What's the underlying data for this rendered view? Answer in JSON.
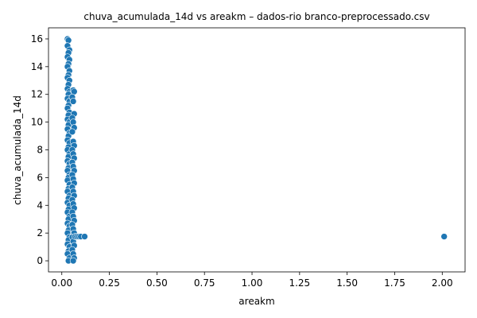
{
  "chart_data": {
    "type": "scatter",
    "title": "chuva_acumulada_14d vs areakm – dados-rio branco-preprocessado.csv",
    "xlabel": "areakm",
    "ylabel": "chuva_acumulada_14d",
    "xlim": [
      -0.07,
      2.12
    ],
    "ylim": [
      -0.8,
      16.8
    ],
    "xticks": [
      0.0,
      0.25,
      0.5,
      0.75,
      1.0,
      1.25,
      1.5,
      1.75,
      2.0
    ],
    "xtick_labels": [
      "0.00",
      "0.25",
      "0.50",
      "0.75",
      "1.00",
      "1.25",
      "1.50",
      "1.75",
      "2.00"
    ],
    "yticks": [
      0,
      2,
      4,
      6,
      8,
      10,
      12,
      14,
      16
    ],
    "ytick_labels": [
      "0",
      "2",
      "4",
      "6",
      "8",
      "10",
      "12",
      "14",
      "16"
    ],
    "grid": false,
    "series": [
      {
        "color": "#1f77b4",
        "points": [
          [
            0.03,
            16.0
          ],
          [
            0.035,
            15.9
          ],
          [
            0.03,
            15.5
          ],
          [
            0.04,
            15.2
          ],
          [
            0.035,
            15.0
          ],
          [
            0.03,
            14.7
          ],
          [
            0.04,
            14.5
          ],
          [
            0.035,
            14.2
          ],
          [
            0.03,
            14.0
          ],
          [
            0.04,
            13.7
          ],
          [
            0.035,
            13.4
          ],
          [
            0.03,
            13.2
          ],
          [
            0.04,
            13.0
          ],
          [
            0.035,
            12.7
          ],
          [
            0.03,
            12.4
          ],
          [
            0.04,
            12.2
          ],
          [
            0.035,
            12.0
          ],
          [
            0.03,
            11.7
          ],
          [
            0.04,
            11.5
          ],
          [
            0.035,
            11.2
          ],
          [
            0.03,
            11.0
          ],
          [
            0.04,
            10.7
          ],
          [
            0.035,
            10.5
          ],
          [
            0.03,
            10.2
          ],
          [
            0.04,
            10.0
          ],
          [
            0.035,
            9.8
          ],
          [
            0.03,
            9.5
          ],
          [
            0.04,
            9.2
          ],
          [
            0.035,
            9.0
          ],
          [
            0.03,
            8.7
          ],
          [
            0.04,
            8.5
          ],
          [
            0.035,
            8.2
          ],
          [
            0.03,
            8.0
          ],
          [
            0.04,
            7.7
          ],
          [
            0.035,
            7.5
          ],
          [
            0.03,
            7.2
          ],
          [
            0.04,
            7.0
          ],
          [
            0.035,
            6.7
          ],
          [
            0.03,
            6.5
          ],
          [
            0.04,
            6.2
          ],
          [
            0.035,
            6.0
          ],
          [
            0.03,
            5.8
          ],
          [
            0.04,
            5.5
          ],
          [
            0.035,
            5.2
          ],
          [
            0.03,
            5.0
          ],
          [
            0.04,
            4.7
          ],
          [
            0.035,
            4.5
          ],
          [
            0.03,
            4.2
          ],
          [
            0.04,
            4.0
          ],
          [
            0.035,
            3.7
          ],
          [
            0.03,
            3.5
          ],
          [
            0.04,
            3.2
          ],
          [
            0.035,
            3.0
          ],
          [
            0.03,
            2.7
          ],
          [
            0.04,
            2.5
          ],
          [
            0.035,
            2.2
          ],
          [
            0.03,
            2.0
          ],
          [
            0.04,
            1.7
          ],
          [
            0.035,
            1.5
          ],
          [
            0.03,
            1.2
          ],
          [
            0.04,
            1.0
          ],
          [
            0.035,
            0.7
          ],
          [
            0.03,
            0.5
          ],
          [
            0.04,
            0.2
          ],
          [
            0.035,
            0.0
          ],
          [
            0.06,
            12.3
          ],
          [
            0.065,
            12.2
          ],
          [
            0.055,
            11.8
          ],
          [
            0.06,
            11.5
          ],
          [
            0.065,
            10.6
          ],
          [
            0.055,
            10.3
          ],
          [
            0.06,
            10.0
          ],
          [
            0.065,
            9.6
          ],
          [
            0.055,
            9.3
          ],
          [
            0.06,
            8.6
          ],
          [
            0.065,
            8.3
          ],
          [
            0.055,
            8.0
          ],
          [
            0.06,
            7.7
          ],
          [
            0.065,
            7.4
          ],
          [
            0.055,
            7.1
          ],
          [
            0.06,
            6.8
          ],
          [
            0.065,
            6.5
          ],
          [
            0.055,
            6.2
          ],
          [
            0.06,
            5.9
          ],
          [
            0.065,
            5.6
          ],
          [
            0.055,
            5.3
          ],
          [
            0.06,
            5.0
          ],
          [
            0.065,
            4.7
          ],
          [
            0.055,
            4.4
          ],
          [
            0.06,
            4.1
          ],
          [
            0.065,
            3.8
          ],
          [
            0.055,
            3.5
          ],
          [
            0.06,
            3.2
          ],
          [
            0.065,
            2.9
          ],
          [
            0.055,
            2.6
          ],
          [
            0.06,
            2.3
          ],
          [
            0.065,
            2.0
          ],
          [
            0.055,
            1.7
          ],
          [
            0.06,
            1.4
          ],
          [
            0.065,
            1.1
          ],
          [
            0.055,
            0.8
          ],
          [
            0.06,
            0.5
          ],
          [
            0.065,
            0.2
          ],
          [
            0.06,
            0.0
          ],
          [
            0.07,
            1.75
          ],
          [
            0.08,
            1.75
          ],
          [
            0.09,
            1.75
          ],
          [
            0.1,
            1.75
          ],
          [
            0.12,
            1.75
          ],
          [
            2.01,
            1.75
          ]
        ]
      }
    ]
  }
}
